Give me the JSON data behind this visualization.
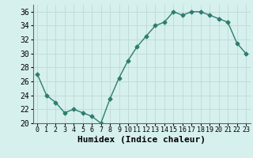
{
  "x": [
    0,
    1,
    2,
    3,
    4,
    5,
    6,
    7,
    8,
    9,
    10,
    11,
    12,
    13,
    14,
    15,
    16,
    17,
    18,
    19,
    20,
    21,
    22,
    23
  ],
  "y": [
    27,
    24,
    23,
    21.5,
    22,
    21.5,
    21,
    20,
    23.5,
    26.5,
    29,
    31,
    32.5,
    34,
    34.5,
    36,
    35.5,
    36,
    36,
    35.5,
    35,
    34.5,
    31.5,
    30
  ],
  "line_color": "#2e7d6e",
  "marker": "D",
  "marker_size": 2.5,
  "bg_color": "#d6f0ee",
  "grid_color": "#c0dcd8",
  "xlabel": "Humidex (Indice chaleur)",
  "ylim": [
    20,
    37
  ],
  "yticks": [
    20,
    22,
    24,
    26,
    28,
    30,
    32,
    34,
    36
  ],
  "xticks": [
    0,
    1,
    2,
    3,
    4,
    5,
    6,
    7,
    8,
    9,
    10,
    11,
    12,
    13,
    14,
    15,
    16,
    17,
    18,
    19,
    20,
    21,
    22,
    23
  ],
  "tick_fontsize": 7,
  "xlabel_fontsize": 8,
  "line_width": 1.0
}
